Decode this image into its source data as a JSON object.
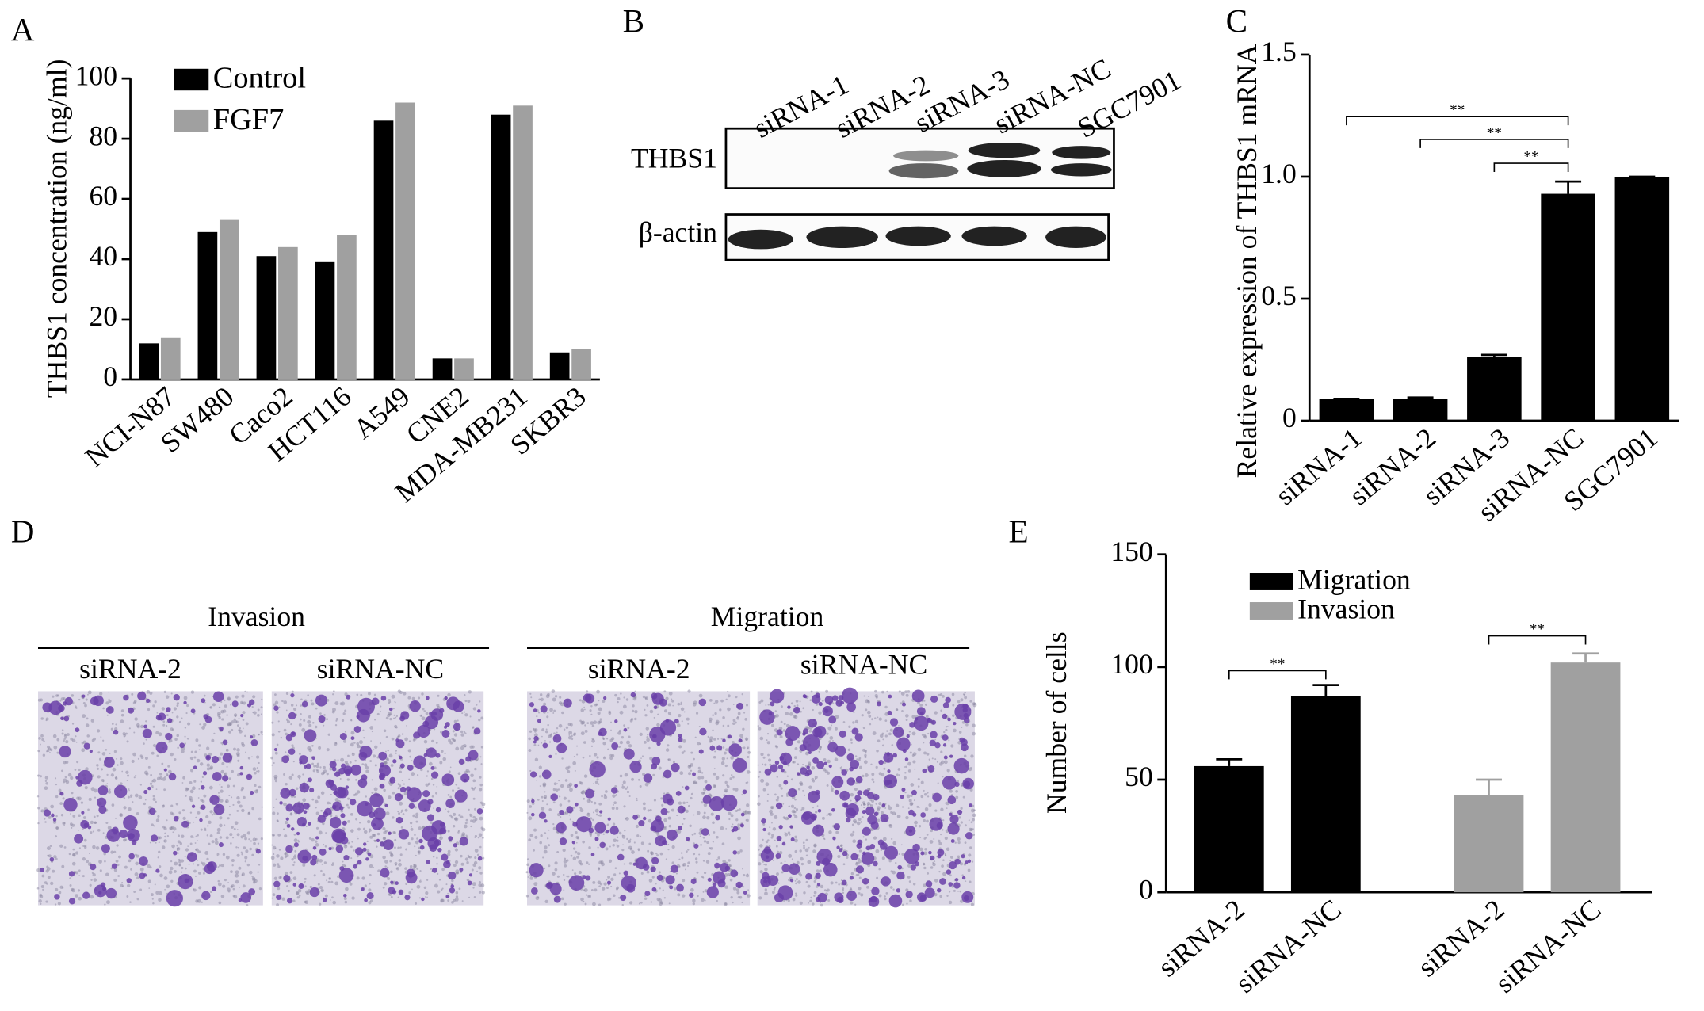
{
  "chart_data": [
    {
      "type": "bar",
      "panel": "A",
      "ylabel": "THBS1 concentration (ng/ml)",
      "categories": [
        "NCI-N87",
        "SW480",
        "Caco2",
        "HCT116",
        "A549",
        "CNE2",
        "MDA-MB231",
        "SKBR3"
      ],
      "series": [
        {
          "name": "Control",
          "color": "#000000",
          "values": [
            12,
            49,
            41,
            39,
            86,
            7,
            88,
            9
          ]
        },
        {
          "name": "FGF7",
          "color": "#a0a0a0",
          "values": [
            14,
            53,
            44,
            48,
            92,
            7,
            91,
            10
          ]
        }
      ],
      "ylim": [
        0,
        100
      ],
      "yticks": [
        0,
        20,
        40,
        60,
        80,
        100
      ]
    },
    {
      "type": "bar",
      "panel": "C",
      "ylabel": "Relative expression of THBS1 mRNA",
      "categories": [
        "siRNA-1",
        "siRNA-2",
        "siRNA-3",
        "siRNA-NC",
        "SGC7901"
      ],
      "series": [
        {
          "color": "#000000",
          "values": [
            0.09,
            0.09,
            0.26,
            0.93,
            1.0
          ],
          "errors": [
            0,
            0.005,
            0.01,
            0.05,
            0
          ]
        }
      ],
      "ylim": [
        0,
        1.5
      ],
      "yticks": [
        0,
        0.5,
        {
          "value": 1,
          "label": "1.0"
        },
        1.5
      ],
      "annotations": [
        "**",
        "**",
        "**"
      ]
    },
    {
      "type": "bar",
      "panel": "E",
      "ylabel": "Number of cells",
      "categories": [
        "siRNA-2",
        "siRNA-NC",
        "siRNA-2",
        "siRNA-NC"
      ],
      "series": [
        {
          "name": "Migration",
          "color": "#000000",
          "values": [
            56,
            87,
            null,
            null
          ],
          "errors": [
            3,
            5,
            null,
            null
          ]
        },
        {
          "name": "Invasion",
          "color": "#a0a0a0",
          "values": [
            null,
            null,
            43,
            102
          ],
          "errors": [
            null,
            null,
            7,
            4
          ]
        }
      ],
      "ylim": [
        0,
        150
      ],
      "yticks": [
        0,
        50,
        100,
        150
      ],
      "annotations": [
        "**",
        "**"
      ]
    }
  ],
  "blot": {
    "panel": "B",
    "lanes": [
      "siRNA-1",
      "siRNA-2",
      "siRNA-3",
      "siRNA-NC",
      "SGC7901"
    ],
    "rows": [
      "THBS1",
      "β-actin"
    ]
  },
  "micrographs": {
    "panel": "D",
    "groups": [
      {
        "title": "Invasion",
        "images": [
          "siRNA-2",
          "siRNA-NC"
        ]
      },
      {
        "title": "Migration",
        "images": [
          "siRNA-2",
          "siRNA-NC"
        ]
      }
    ]
  }
}
